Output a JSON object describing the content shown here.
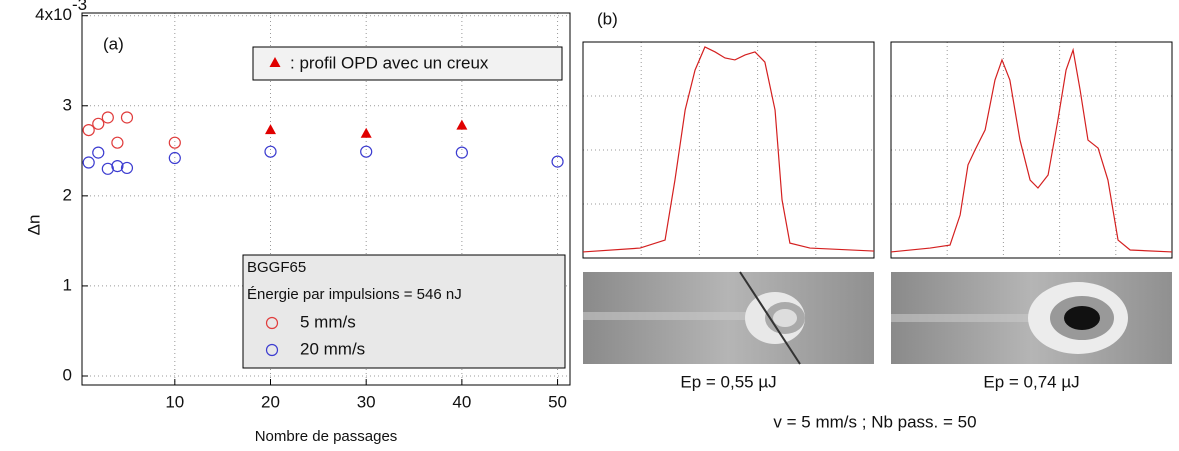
{
  "chart_data": [
    {
      "type": "scatter",
      "panel_label": "(a)",
      "x_label": "Nombre de passages",
      "y_label": "Δn",
      "xlim": [
        0.3,
        51.3
      ],
      "ylim": [
        -0.1,
        4.03
      ],
      "xticks": [
        10,
        20,
        30,
        40,
        50
      ],
      "yticks": [
        0,
        1,
        2,
        3,
        {
          "value": 4,
          "label": "4x10"
        }
      ],
      "y_exponent": "-3",
      "grid": true,
      "legend_title": [
        "BGGF65",
        "Énergie par impulsions = 546 nJ"
      ],
      "series": [
        {
          "name": "5 mm/s",
          "color": "#e03c3c",
          "marker": "circle",
          "legend": "lower",
          "x": [
            1,
            2,
            3,
            4,
            5,
            10
          ],
          "values": [
            2.73,
            2.8,
            2.87,
            2.59,
            2.87,
            2.59
          ]
        },
        {
          "name": "20 mm/s",
          "color": "#3c3cd0",
          "marker": "circle",
          "legend": "lower",
          "x": [
            1,
            2,
            3,
            4,
            5,
            10,
            20,
            30,
            40,
            50
          ],
          "values": [
            2.37,
            2.48,
            2.3,
            2.33,
            2.31,
            2.42,
            2.49,
            2.49,
            2.48,
            2.38
          ]
        },
        {
          "name": ": profil OPD avec un creux",
          "color": "#e00000",
          "marker": "triangle",
          "legend": "upper",
          "x": [
            20,
            30,
            40
          ],
          "values": [
            2.73,
            2.69,
            2.78
          ]
        }
      ]
    },
    {
      "type": "line",
      "panel_label": "(b)",
      "caption": "Ep = 0,55 µJ",
      "color": "#d42020",
      "xlim": [
        0,
        100
      ],
      "ylim": [
        0,
        100
      ],
      "xticks": [
        0,
        20,
        40,
        60,
        80,
        100
      ],
      "yticks": [
        0,
        25,
        50,
        75,
        100
      ],
      "grid": true,
      "x": [
        0,
        19.6,
        28.2,
        31.6,
        35.1,
        38.5,
        41.9,
        45.4,
        48.8,
        52.2,
        55.7,
        59.1,
        62.5,
        66.0,
        68.4,
        71.1,
        78.0,
        100
      ],
      "values": [
        2.8,
        4.6,
        8.3,
        36.1,
        68.5,
        87.0,
        97.7,
        95.4,
        92.6,
        91.7,
        94.0,
        95.4,
        90.7,
        68.5,
        26.9,
        6.9,
        4.6,
        3.2
      ]
    },
    {
      "type": "line",
      "caption": "Ep = 0,74 µJ",
      "color": "#d42020",
      "xlim": [
        0,
        100
      ],
      "ylim": [
        0,
        100
      ],
      "xticks": [
        0,
        20,
        40,
        60,
        80,
        100
      ],
      "yticks": [
        0,
        25,
        50,
        75,
        100
      ],
      "grid": true,
      "x": [
        0,
        13.9,
        21.0,
        24.6,
        27.4,
        29.9,
        33.5,
        37.0,
        39.5,
        42.3,
        45.9,
        49.5,
        52.3,
        55.9,
        59.4,
        62.3,
        64.8,
        67.3,
        70.1,
        73.7,
        77.2,
        80.8,
        85.1,
        100
      ],
      "values": [
        2.8,
        4.6,
        6.0,
        19.9,
        43.1,
        50.0,
        59.3,
        82.4,
        91.7,
        82.4,
        54.6,
        36.1,
        32.4,
        38.4,
        63.9,
        87.0,
        96.3,
        77.8,
        54.6,
        50.9,
        36.1,
        8.3,
        3.7,
        2.8
      ]
    }
  ],
  "footnote": "v = 5 mm/s  ;  Nb pass. = 50"
}
